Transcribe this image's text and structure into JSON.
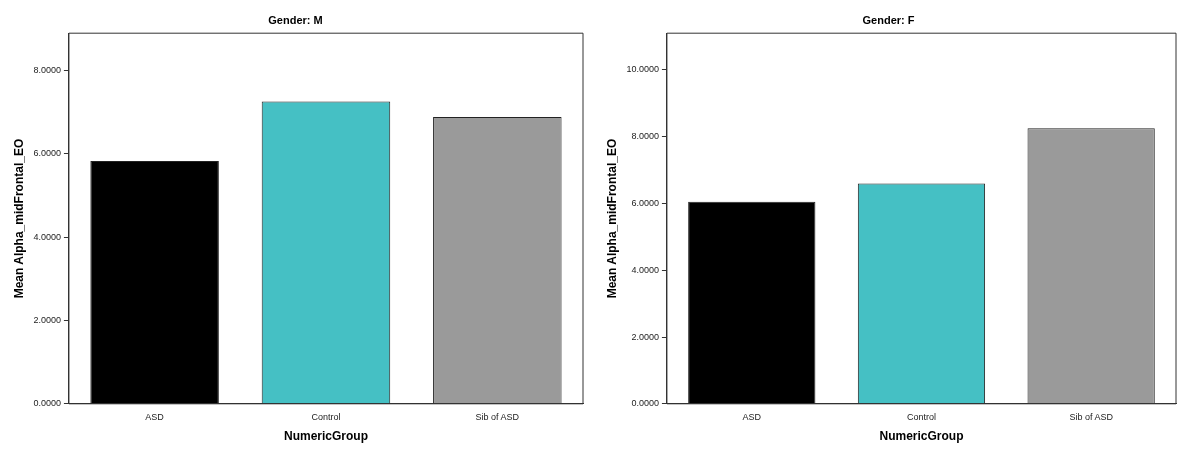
{
  "chart_data": [
    {
      "type": "bar",
      "title": "Gender: M",
      "xlabel": "NumericGroup",
      "ylabel": "Mean Alpha_midFrontal_EO",
      "categories": [
        "ASD",
        "Control",
        "Sib of ASD"
      ],
      "values": [
        5.83,
        7.26,
        6.89
      ],
      "colors": [
        "#000000",
        "#45c0c4",
        "#9a9a9a"
      ],
      "ylim": [
        0,
        8.9
      ],
      "yticks": [
        {
          "value": 0,
          "label": "0.0000"
        },
        {
          "value": 2,
          "label": "2.0000"
        },
        {
          "value": 4,
          "label": "4.0000"
        },
        {
          "value": 6,
          "label": "6.0000"
        },
        {
          "value": 8,
          "label": "8.0000"
        }
      ],
      "grid": false,
      "legend": false
    },
    {
      "type": "bar",
      "title": "Gender: F",
      "xlabel": "NumericGroup",
      "ylabel": "Mean Alpha_midFrontal_EO",
      "categories": [
        "ASD",
        "Control",
        "Sib of ASD"
      ],
      "values": [
        6.05,
        6.6,
        8.25
      ],
      "colors": [
        "#000000",
        "#45c0c4",
        "#9a9a9a"
      ],
      "ylim": [
        0,
        11.1
      ],
      "yticks": [
        {
          "value": 0,
          "label": "0.0000"
        },
        {
          "value": 2,
          "label": "2.0000"
        },
        {
          "value": 4,
          "label": "4.0000"
        },
        {
          "value": 6,
          "label": "6.0000"
        },
        {
          "value": 8,
          "label": "8.0000"
        },
        {
          "value": 10,
          "label": "10.0000"
        }
      ],
      "grid": false,
      "legend": false
    }
  ]
}
